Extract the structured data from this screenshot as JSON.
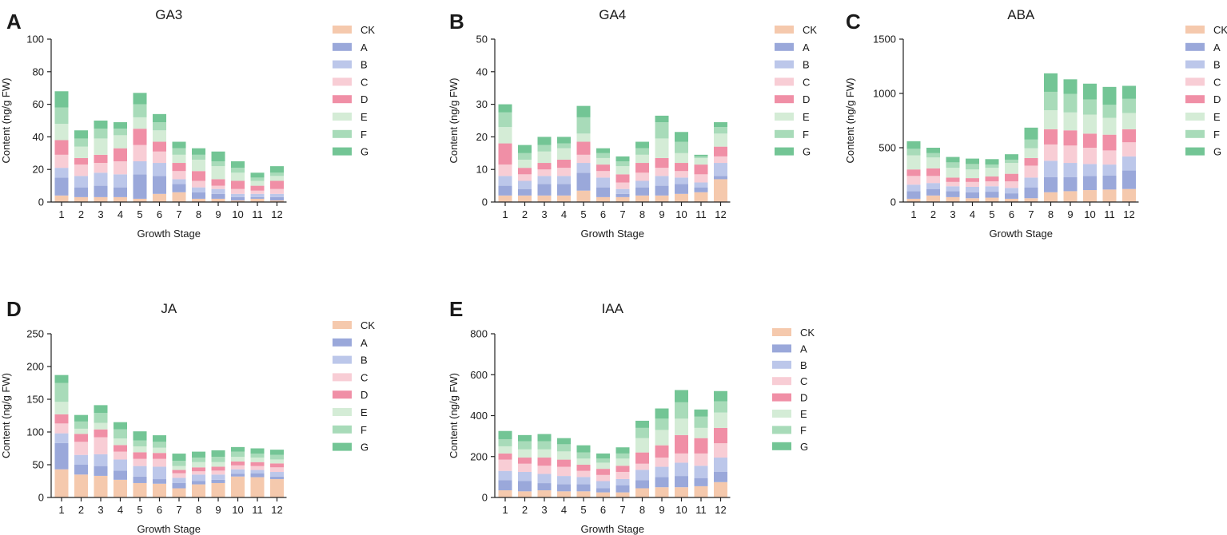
{
  "series_names": [
    "CK",
    "A",
    "B",
    "C",
    "D",
    "E",
    "F",
    "G"
  ],
  "series_colors": [
    "#f5c9ad",
    "#9aa8da",
    "#bcc7ea",
    "#f8cdd5",
    "#f08fa6",
    "#d4ecd6",
    "#a8dbb9",
    "#73c595"
  ],
  "chart_data": [
    {
      "type": "bar",
      "stacked": true,
      "panel": "A",
      "title": "GA3",
      "xlabel": "Growth Stage",
      "ylabel": "Content (ng/g FW)",
      "ylim": [
        0,
        100
      ],
      "yticks": [
        0,
        20,
        40,
        60,
        80,
        100
      ],
      "categories": [
        "1",
        "2",
        "3",
        "4",
        "5",
        "6",
        "7",
        "8",
        "9",
        "10",
        "11",
        "12"
      ],
      "series": [
        {
          "name": "CK",
          "values": [
            4,
            3,
            3,
            3,
            2,
            5,
            6,
            2,
            2,
            1,
            2,
            1
          ]
        },
        {
          "name": "A",
          "values": [
            11,
            6,
            7,
            6,
            15,
            11,
            5,
            4,
            3,
            2,
            1,
            2
          ]
        },
        {
          "name": "B",
          "values": [
            6,
            7,
            8,
            8,
            8,
            8,
            3,
            3,
            3,
            2,
            2,
            2
          ]
        },
        {
          "name": "C",
          "values": [
            8,
            7,
            6,
            8,
            10,
            7,
            5,
            4,
            2,
            3,
            2,
            3
          ]
        },
        {
          "name": "D",
          "values": [
            9,
            4,
            5,
            8,
            10,
            6,
            5,
            6,
            4,
            5,
            3,
            5
          ]
        },
        {
          "name": "E",
          "values": [
            10,
            7,
            10,
            8,
            7,
            7,
            5,
            7,
            8,
            5,
            3,
            3
          ]
        },
        {
          "name": "F",
          "values": [
            10,
            5,
            6,
            4,
            8,
            5,
            4,
            3,
            3,
            3,
            2,
            2
          ]
        },
        {
          "name": "G",
          "values": [
            10,
            5,
            5,
            4,
            7,
            5,
            4,
            4,
            6,
            4,
            3,
            4
          ]
        }
      ]
    },
    {
      "type": "bar",
      "stacked": true,
      "panel": "B",
      "title": "GA4",
      "xlabel": "Growth Stage",
      "ylabel": "Content (ng/g FW)",
      "ylim": [
        0,
        50
      ],
      "yticks": [
        0,
        10,
        20,
        30,
        40,
        50
      ],
      "categories": [
        "1",
        "2",
        "3",
        "4",
        "5",
        "6",
        "7",
        "8",
        "9",
        "10",
        "11",
        "12"
      ],
      "series": [
        {
          "name": "CK",
          "values": [
            2,
            2,
            2,
            2,
            3.5,
            1.5,
            1.5,
            2,
            2,
            2.5,
            3,
            7
          ]
        },
        {
          "name": "A",
          "values": [
            3,
            2,
            3.5,
            3.5,
            5.5,
            3,
            1,
            2.5,
            3,
            3,
            1.5,
            1
          ]
        },
        {
          "name": "B",
          "values": [
            3,
            2.5,
            2.5,
            2.5,
            3,
            3,
            1.5,
            2,
            3,
            2,
            1.5,
            4
          ]
        },
        {
          "name": "C",
          "values": [
            3.5,
            2,
            2,
            2.5,
            2.5,
            2,
            2,
            2.5,
            2.5,
            2,
            2.5,
            2
          ]
        },
        {
          "name": "D",
          "values": [
            6.5,
            2,
            2,
            2.5,
            4,
            2,
            2.5,
            3,
            3,
            2.5,
            3,
            3
          ]
        },
        {
          "name": "E",
          "values": [
            5,
            2.5,
            3.5,
            3.5,
            2.5,
            2,
            2.5,
            2.5,
            6,
            3,
            2,
            4
          ]
        },
        {
          "name": "F",
          "values": [
            4.5,
            2,
            2,
            1.5,
            5,
            1.5,
            1.5,
            2,
            5,
            3.5,
            0.5,
            2
          ]
        },
        {
          "name": "G",
          "values": [
            2.5,
            2.5,
            2.5,
            2,
            3.5,
            1.5,
            1.5,
            2,
            2,
            3,
            0.5,
            1.5
          ]
        }
      ]
    },
    {
      "type": "bar",
      "stacked": true,
      "panel": "C",
      "title": "ABA",
      "xlabel": "Growth Stage",
      "ylabel": "Content (ng/g FW)",
      "ylim": [
        0,
        1500
      ],
      "yticks": [
        0,
        500,
        1000,
        1500
      ],
      "categories": [
        "1",
        "2",
        "3",
        "4",
        "5",
        "6",
        "7",
        "8",
        "9",
        "10",
        "11",
        "12"
      ],
      "series": [
        {
          "name": "CK",
          "values": [
            30,
            60,
            45,
            35,
            40,
            30,
            35,
            90,
            100,
            110,
            115,
            120
          ]
        },
        {
          "name": "A",
          "values": [
            70,
            60,
            55,
            55,
            55,
            50,
            100,
            140,
            130,
            130,
            130,
            170
          ]
        },
        {
          "name": "B",
          "values": [
            60,
            55,
            45,
            50,
            50,
            50,
            90,
            150,
            130,
            110,
            100,
            130
          ]
        },
        {
          "name": "C",
          "values": [
            80,
            65,
            40,
            45,
            45,
            60,
            110,
            150,
            160,
            150,
            130,
            130
          ]
        },
        {
          "name": "D",
          "values": [
            60,
            70,
            40,
            35,
            45,
            70,
            70,
            140,
            140,
            130,
            145,
            120
          ]
        },
        {
          "name": "E",
          "values": [
            130,
            100,
            90,
            80,
            80,
            100,
            90,
            175,
            165,
            175,
            155,
            150
          ]
        },
        {
          "name": "F",
          "values": [
            60,
            40,
            50,
            50,
            30,
            30,
            80,
            170,
            170,
            140,
            120,
            130
          ]
        },
        {
          "name": "G",
          "values": [
            70,
            50,
            50,
            50,
            50,
            50,
            110,
            170,
            135,
            145,
            165,
            120
          ]
        }
      ]
    },
    {
      "type": "bar",
      "stacked": true,
      "panel": "D",
      "title": "JA",
      "xlabel": "Growth Stage",
      "ylabel": "Content (ng/g FW)",
      "ylim": [
        0,
        250
      ],
      "yticks": [
        0,
        50,
        100,
        150,
        200,
        250
      ],
      "categories": [
        "1",
        "2",
        "3",
        "4",
        "5",
        "6",
        "7",
        "8",
        "9",
        "10",
        "11",
        "12"
      ],
      "series": [
        {
          "name": "CK",
          "values": [
            43,
            35,
            33,
            27,
            22,
            21,
            14,
            20,
            22,
            32,
            31,
            28
          ]
        },
        {
          "name": "A",
          "values": [
            40,
            15,
            15,
            14,
            10,
            7,
            8,
            5,
            5,
            4,
            6,
            4
          ]
        },
        {
          "name": "B",
          "values": [
            15,
            15,
            18,
            17,
            16,
            19,
            8,
            10,
            8,
            7,
            5,
            7
          ]
        },
        {
          "name": "C",
          "values": [
            15,
            20,
            26,
            12,
            11,
            12,
            7,
            5,
            6,
            6,
            6,
            7
          ]
        },
        {
          "name": "D",
          "values": [
            14,
            12,
            12,
            10,
            10,
            9,
            5,
            6,
            6,
            6,
            6,
            6
          ]
        },
        {
          "name": "E",
          "values": [
            19,
            8,
            10,
            10,
            9,
            8,
            6,
            8,
            7,
            7,
            7,
            6
          ]
        },
        {
          "name": "F",
          "values": [
            29,
            11,
            15,
            14,
            9,
            9,
            8,
            7,
            8,
            8,
            6,
            7
          ]
        },
        {
          "name": "G",
          "values": [
            12,
            10,
            12,
            11,
            14,
            10,
            11,
            9,
            10,
            7,
            8,
            8
          ]
        }
      ]
    },
    {
      "type": "bar",
      "stacked": true,
      "panel": "E",
      "title": "IAA",
      "xlabel": "Growth Stage",
      "ylabel": "Content (ng/g FW)",
      "ylim": [
        0,
        800
      ],
      "yticks": [
        0,
        200,
        400,
        600,
        800
      ],
      "categories": [
        "1",
        "2",
        "3",
        "4",
        "5",
        "6",
        "7",
        "8",
        "9",
        "10",
        "11",
        "12"
      ],
      "series": [
        {
          "name": "CK",
          "values": [
            35,
            30,
            35,
            30,
            30,
            25,
            25,
            45,
            50,
            50,
            55,
            75
          ]
        },
        {
          "name": "A",
          "values": [
            50,
            50,
            35,
            35,
            35,
            20,
            35,
            40,
            50,
            55,
            40,
            50
          ]
        },
        {
          "name": "B",
          "values": [
            45,
            45,
            45,
            40,
            35,
            35,
            30,
            50,
            50,
            65,
            60,
            70
          ]
        },
        {
          "name": "C",
          "values": [
            55,
            40,
            40,
            45,
            30,
            30,
            35,
            30,
            45,
            45,
            60,
            70
          ]
        },
        {
          "name": "D",
          "values": [
            30,
            30,
            40,
            35,
            30,
            30,
            30,
            55,
            60,
            90,
            75,
            75
          ]
        },
        {
          "name": "E",
          "values": [
            35,
            40,
            40,
            40,
            30,
            30,
            35,
            70,
            75,
            80,
            50,
            75
          ]
        },
        {
          "name": "F",
          "values": [
            35,
            40,
            40,
            35,
            30,
            20,
            25,
            50,
            55,
            80,
            55,
            55
          ]
        },
        {
          "name": "G",
          "values": [
            40,
            30,
            35,
            30,
            35,
            25,
            30,
            35,
            50,
            60,
            35,
            50
          ]
        }
      ]
    }
  ]
}
